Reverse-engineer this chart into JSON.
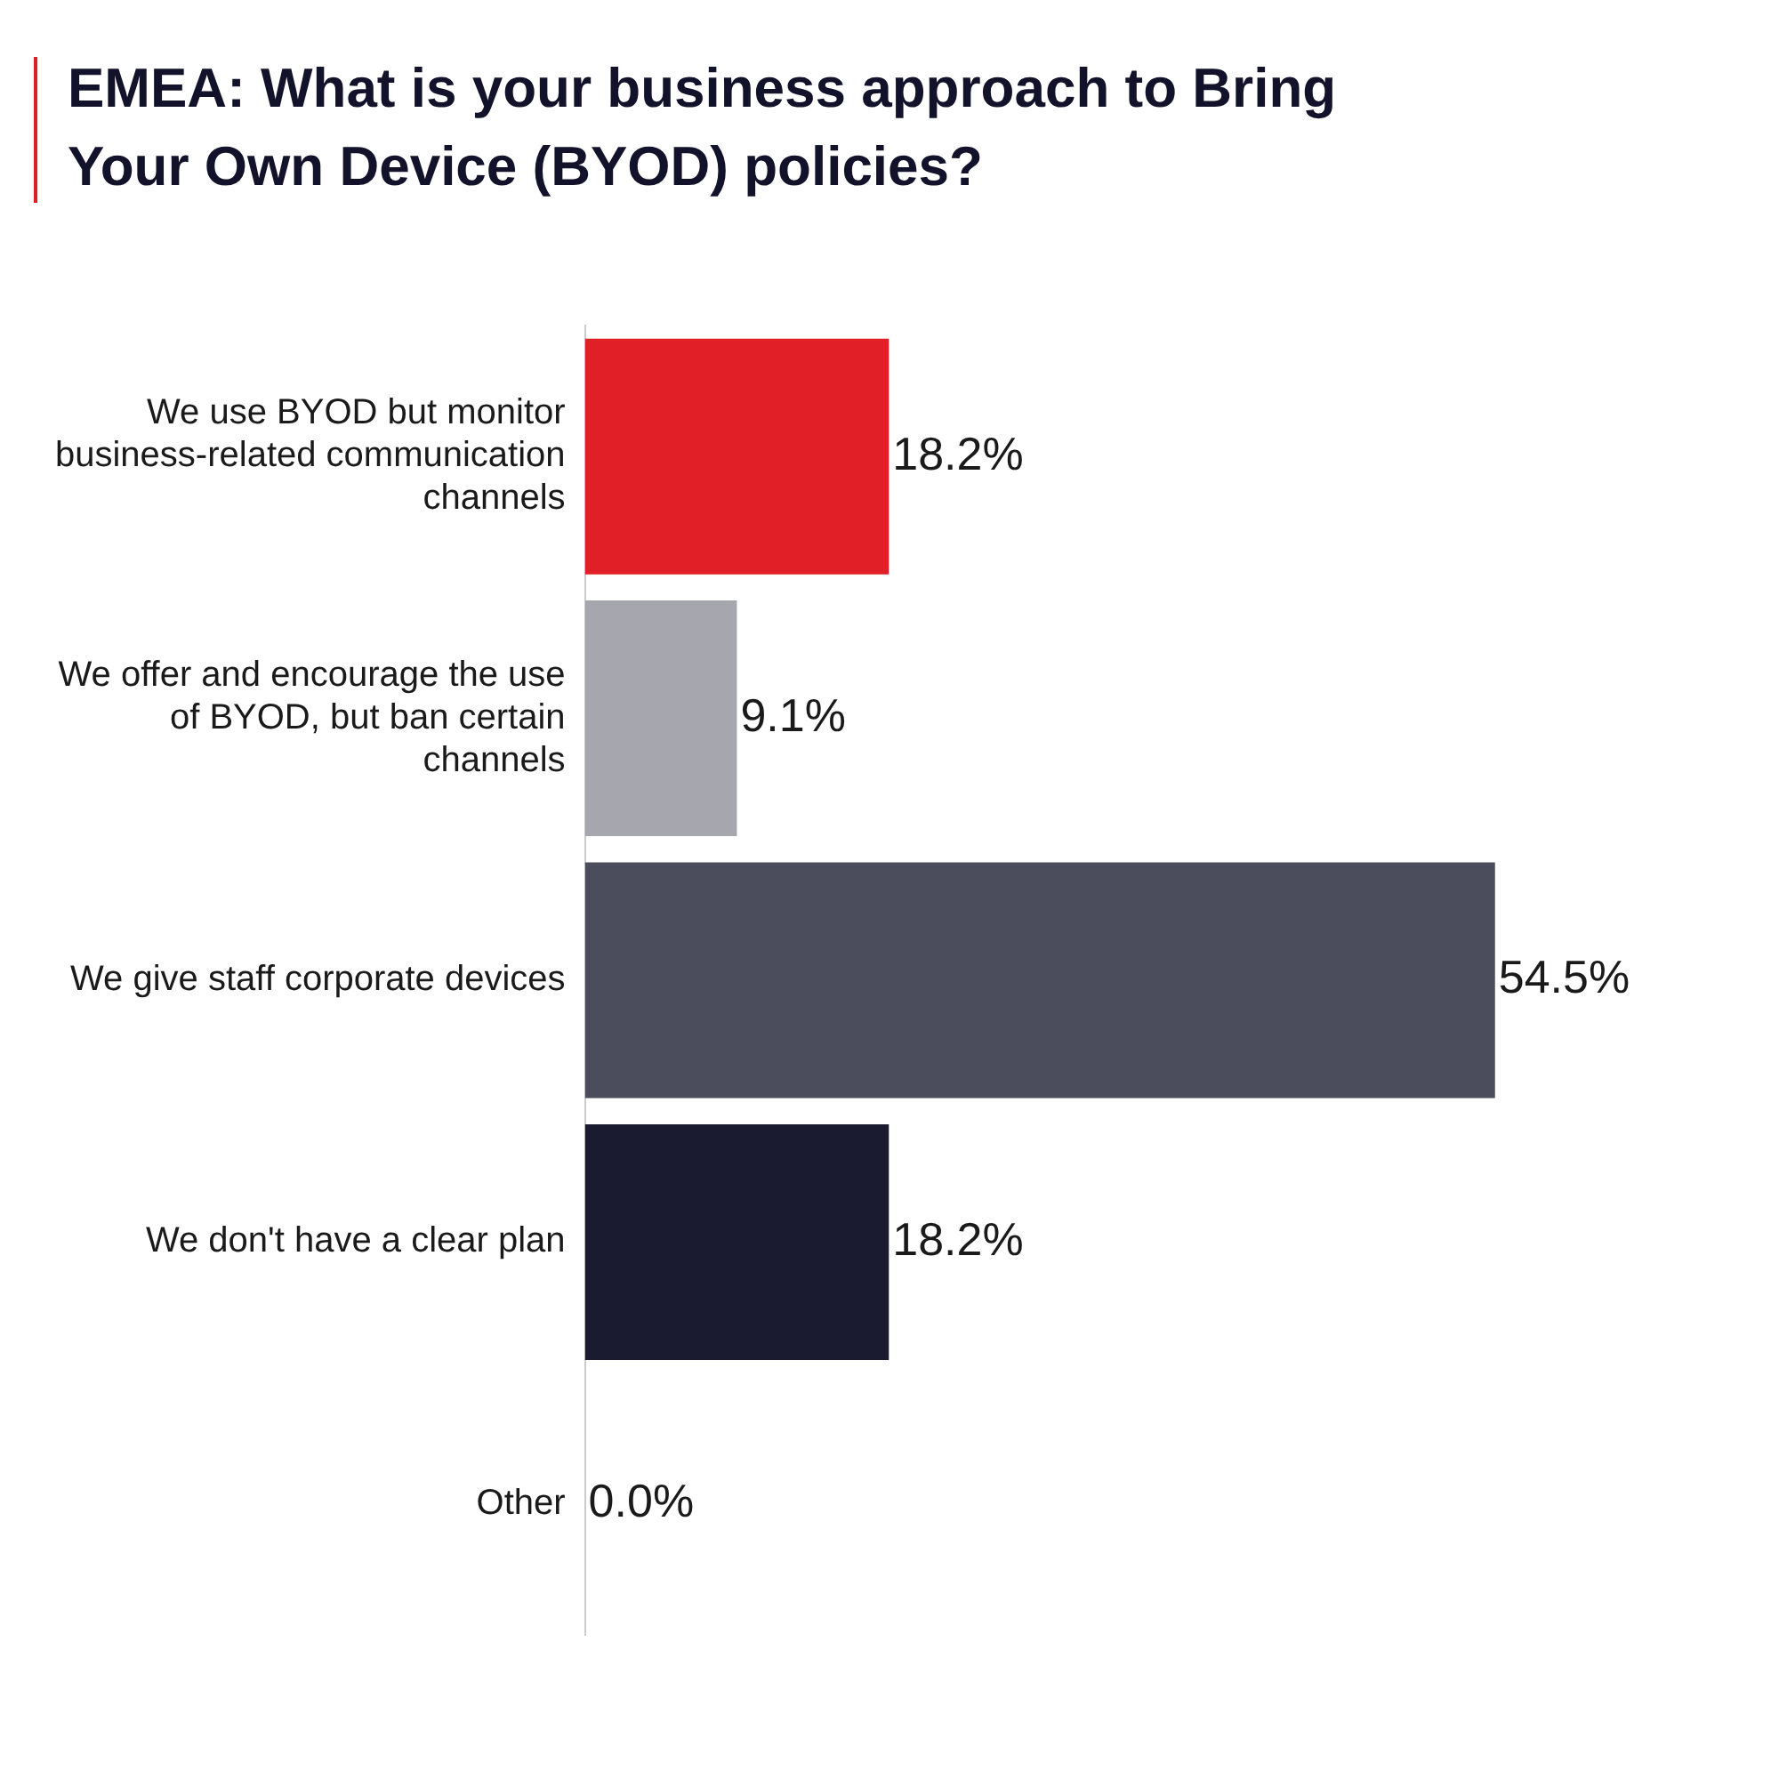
{
  "chart_data": {
    "type": "bar",
    "orientation": "horizontal",
    "title": "EMEA: What is your business approach to Bring Your Own Device (BYOD) policies?",
    "categories": [
      "We use BYOD but monitor business-related communication channels",
      "We offer and encourage the use of BYOD, but ban certain channels",
      "We give staff corporate devices",
      "We don't have a clear plan",
      "Other"
    ],
    "values": [
      18.2,
      9.1,
      54.5,
      18.2,
      0.0
    ],
    "colors": [
      "#e01f26",
      "#a6a6ae",
      "#4b4d5c",
      "#1a1a30",
      "#4b4d5c"
    ],
    "value_labels": [
      "18.2%",
      "9.1%",
      "54.5%",
      "18.2%",
      "0.0%"
    ],
    "legend": false
  }
}
